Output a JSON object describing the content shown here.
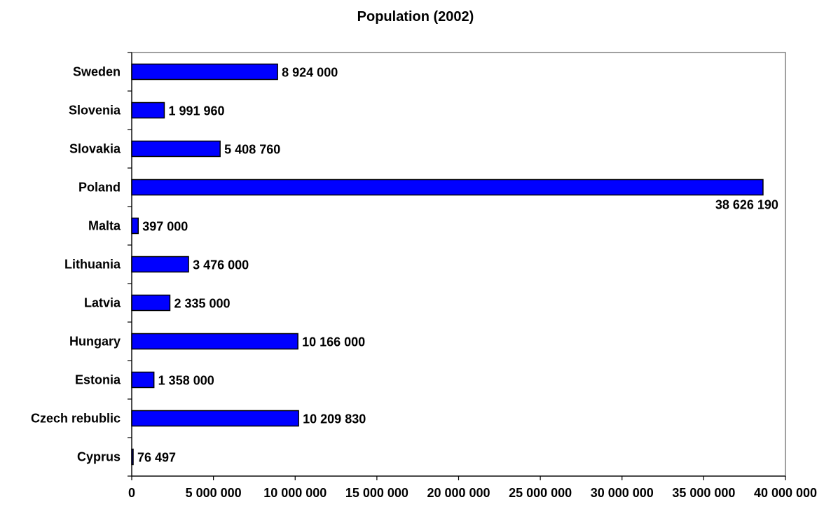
{
  "chart_data": {
    "type": "bar",
    "orientation": "horizontal",
    "title": "Population (2002)",
    "xlabel": "",
    "ylabel": "",
    "categories": [
      "Sweden",
      "Slovenia",
      "Slovakia",
      "Poland",
      "Malta",
      "Lithuania",
      "Latvia",
      "Hungary",
      "Estonia",
      "Czech rebublic",
      "Cyprus"
    ],
    "values": [
      8924000,
      1991960,
      5408760,
      38626190,
      397000,
      3476000,
      2335000,
      10166000,
      1358000,
      10209830,
      76497
    ],
    "data_labels": [
      "8 924 000",
      "1 991 960",
      "5 408 760",
      "38 626 190",
      "397 000",
      "3 476 000",
      "2 335 000",
      "10 166 000",
      "1 358 000",
      "10 209 830",
      "76 497"
    ],
    "xlim": [
      0,
      40000000
    ],
    "x_ticks": [
      0,
      5000000,
      10000000,
      15000000,
      20000000,
      25000000,
      30000000,
      35000000,
      40000000
    ],
    "x_tick_labels": [
      "0",
      "5 000 000",
      "10 000 000",
      "15 000 000",
      "20 000 000",
      "25 000 000",
      "30 000 000",
      "35 000 000",
      "40 000 000"
    ],
    "bar_color": "#0000FF",
    "grid": false,
    "legend": "none"
  }
}
